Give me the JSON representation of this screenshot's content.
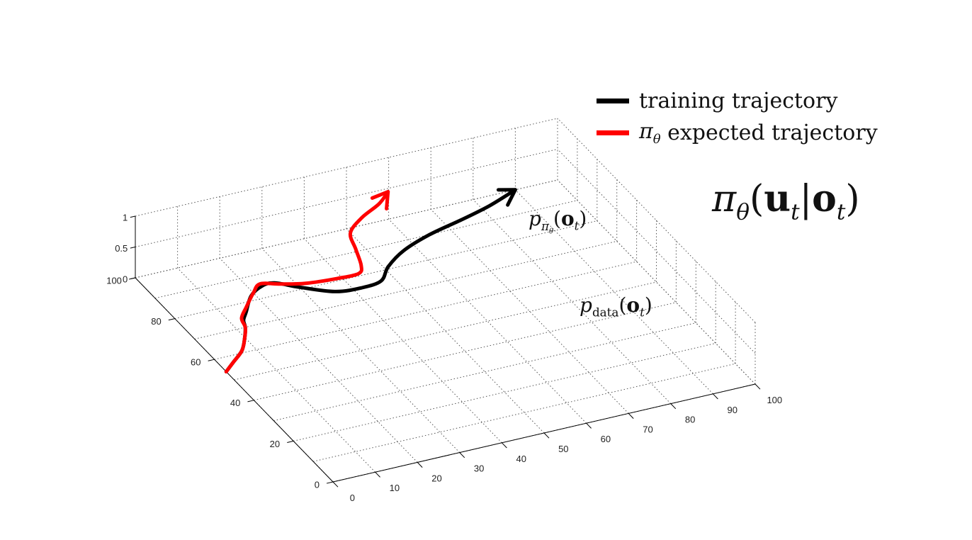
{
  "chart_data": {
    "type": "line",
    "projection": "3d",
    "axes": {
      "x": {
        "ticks": [
          "0",
          "10",
          "20",
          "30",
          "40",
          "50",
          "60",
          "70",
          "80",
          "90",
          "100"
        ],
        "range": [
          0,
          100
        ]
      },
      "y": {
        "ticks": [
          "0",
          "20",
          "40",
          "60",
          "80",
          "100"
        ],
        "range": [
          0,
          100
        ]
      },
      "z": {
        "ticks": [
          "0",
          "0.5",
          "1"
        ],
        "range": [
          0,
          1
        ]
      }
    },
    "grid": true,
    "legend_position": "top-right",
    "series": [
      {
        "name": "training trajectory",
        "color": "#000000",
        "arrow_end": true,
        "points": [
          [
            0,
            54
          ],
          [
            3,
            57
          ],
          [
            7,
            61
          ],
          [
            10,
            66
          ],
          [
            12,
            70
          ],
          [
            13,
            73
          ],
          [
            15,
            76
          ],
          [
            19,
            82
          ],
          [
            23,
            85
          ],
          [
            26,
            85
          ],
          [
            30,
            81
          ],
          [
            36,
            76
          ],
          [
            42,
            75
          ],
          [
            47,
            76
          ],
          [
            51,
            81
          ],
          [
            57,
            86
          ],
          [
            65,
            90
          ],
          [
            74,
            93
          ],
          [
            82,
            96
          ],
          [
            90,
            100
          ]
        ]
      },
      {
        "name": "π_θ expected trajectory",
        "color": "#ff0000",
        "arrow_end": true,
        "points": [
          [
            0,
            54
          ],
          [
            3,
            57
          ],
          [
            7,
            61
          ],
          [
            10,
            66
          ],
          [
            12,
            70
          ],
          [
            13,
            74
          ],
          [
            16,
            78
          ],
          [
            20,
            83
          ],
          [
            23,
            86
          ],
          [
            27,
            84
          ],
          [
            32,
            82
          ],
          [
            39,
            81
          ],
          [
            44,
            81
          ],
          [
            46,
            84
          ],
          [
            48,
            91
          ],
          [
            50,
            98
          ],
          [
            55,
            103
          ],
          [
            61,
            107
          ],
          [
            65,
            111
          ]
        ]
      }
    ]
  },
  "legend": {
    "items": [
      {
        "label": "training trajectory",
        "color": "#000000"
      },
      {
        "symbol": "π",
        "subscript": "θ",
        "label": "expected trajectory",
        "color": "#ff0000"
      }
    ]
  },
  "annotations": {
    "policy": {
      "pi": "π",
      "theta": "θ",
      "open": "(",
      "u": "u",
      "t1": "t",
      "bar": "|",
      "o": "o",
      "t2": "t",
      "close": ")"
    },
    "p_pi": {
      "p": "p",
      "sub_pi": "π",
      "sub_theta": "θ",
      "open": "(",
      "o": "o",
      "t": "t",
      "close": ")"
    },
    "p_data": {
      "p": "p",
      "sub": "data",
      "open": "(",
      "o": "o",
      "t": "t",
      "close": ")"
    }
  }
}
